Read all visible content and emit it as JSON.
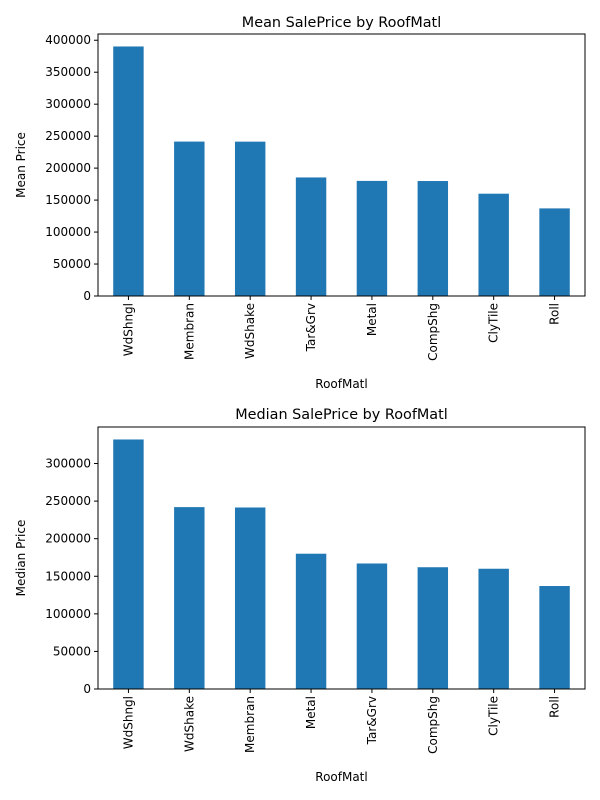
{
  "chart_data": [
    {
      "type": "bar",
      "title": "Mean SalePrice by RoofMatl",
      "xlabel": "RoofMatl",
      "ylabel": "Mean Price",
      "categories": [
        "WdShngl",
        "Membran",
        "WdShake",
        "Tar&Grv",
        "Metal",
        "CompShg",
        "ClyTile",
        "Roll"
      ],
      "values": [
        390250,
        241500,
        241400,
        185406,
        180000,
        179804,
        160000,
        137000
      ],
      "ylim": [
        0,
        409762
      ],
      "yticks": [
        0,
        50000,
        100000,
        150000,
        200000,
        250000,
        300000,
        350000,
        400000
      ],
      "ytick_labels": [
        "0",
        "50000",
        "100000",
        "150000",
        "200000",
        "250000",
        "300000",
        "350000",
        "400000"
      ],
      "bar_color": "#1f77b4",
      "grid": false,
      "legend": false
    },
    {
      "type": "bar",
      "title": "Median SalePrice by RoofMatl",
      "xlabel": "RoofMatl",
      "ylabel": "Median Price",
      "categories": [
        "WdShngl",
        "WdShake",
        "Membran",
        "Metal",
        "Tar&Grv",
        "CompShg",
        "ClyTile",
        "Roll"
      ],
      "values": [
        332000,
        242000,
        241500,
        180000,
        167000,
        162000,
        160000,
        137000
      ],
      "ylim": [
        0,
        348600
      ],
      "yticks": [
        0,
        50000,
        100000,
        150000,
        200000,
        250000,
        300000
      ],
      "ytick_labels": [
        "0",
        "50000",
        "100000",
        "150000",
        "200000",
        "250000",
        "300000"
      ],
      "bar_color": "#1f77b4",
      "grid": false,
      "legend": false
    }
  ]
}
